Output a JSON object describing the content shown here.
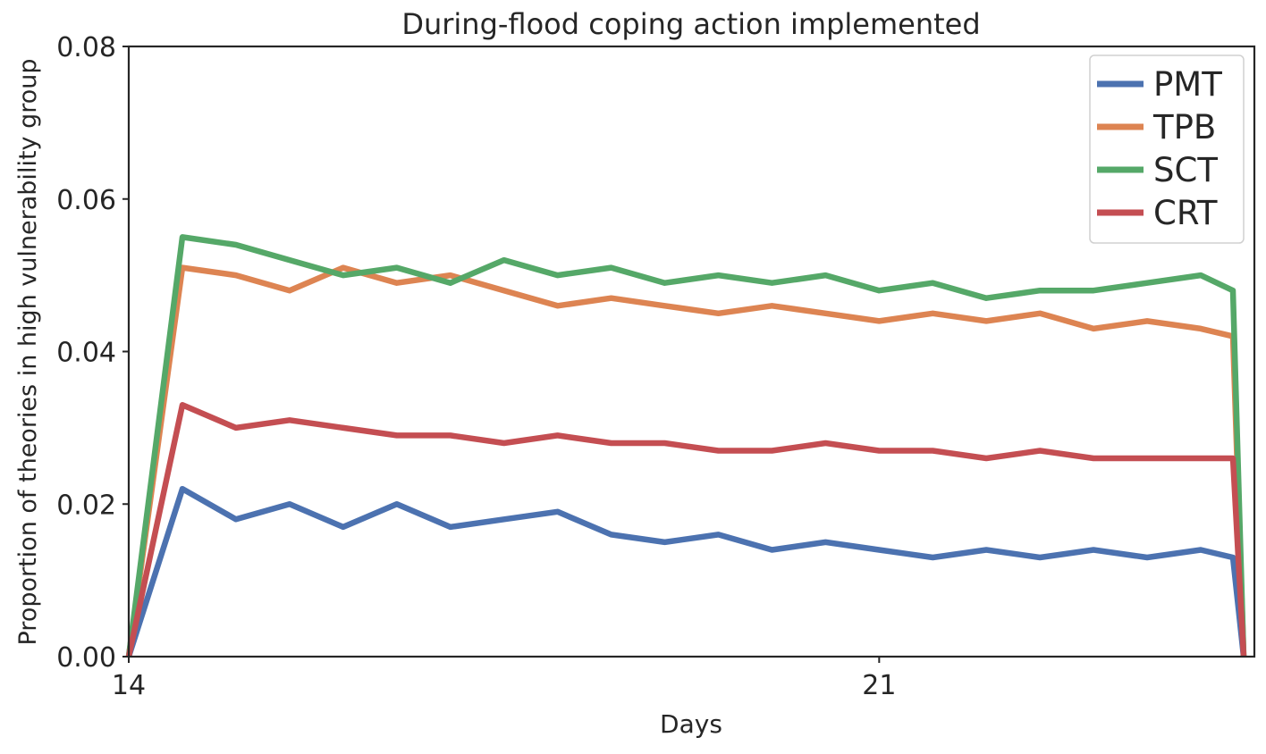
{
  "chart_data": {
    "type": "line",
    "title": "During-flood coping action implemented",
    "xlabel": "Days",
    "ylabel": "Proportion of theories in high vulnerability group",
    "xlim": [
      14,
      24.5
    ],
    "ylim": [
      0,
      0.08
    ],
    "x_ticks": [
      14,
      21
    ],
    "y_ticks": [
      "0.00",
      "0.02",
      "0.04",
      "0.06",
      "0.08"
    ],
    "grid": false,
    "legend_position": "top-right",
    "x": [
      14.0,
      14.5,
      15.0,
      15.5,
      16.0,
      16.5,
      17.0,
      17.5,
      18.0,
      18.5,
      19.0,
      19.5,
      20.0,
      20.5,
      21.0,
      21.5,
      22.0,
      22.5,
      23.0,
      23.5,
      24.0,
      24.3,
      24.4
    ],
    "series": [
      {
        "name": "PMT",
        "color": "#4c72b0",
        "values": [
          0.0,
          0.022,
          0.018,
          0.02,
          0.017,
          0.02,
          0.017,
          0.018,
          0.019,
          0.016,
          0.015,
          0.016,
          0.014,
          0.015,
          0.014,
          0.013,
          0.014,
          0.013,
          0.014,
          0.013,
          0.014,
          0.013,
          0.0
        ]
      },
      {
        "name": "TPB",
        "color": "#dd8452",
        "values": [
          0.0,
          0.051,
          0.05,
          0.048,
          0.051,
          0.049,
          0.05,
          0.048,
          0.046,
          0.047,
          0.046,
          0.045,
          0.046,
          0.045,
          0.044,
          0.045,
          0.044,
          0.045,
          0.043,
          0.044,
          0.043,
          0.042,
          0.0
        ]
      },
      {
        "name": "SCT",
        "color": "#55a868",
        "values": [
          0.0,
          0.055,
          0.054,
          0.052,
          0.05,
          0.051,
          0.049,
          0.052,
          0.05,
          0.051,
          0.049,
          0.05,
          0.049,
          0.05,
          0.048,
          0.049,
          0.047,
          0.048,
          0.048,
          0.049,
          0.05,
          0.048,
          0.0
        ]
      },
      {
        "name": "CRT",
        "color": "#c44e52",
        "values": [
          0.0,
          0.033,
          0.03,
          0.031,
          0.03,
          0.029,
          0.029,
          0.028,
          0.029,
          0.028,
          0.028,
          0.027,
          0.027,
          0.028,
          0.027,
          0.027,
          0.026,
          0.027,
          0.026,
          0.026,
          0.026,
          0.026,
          0.0
        ]
      }
    ]
  }
}
